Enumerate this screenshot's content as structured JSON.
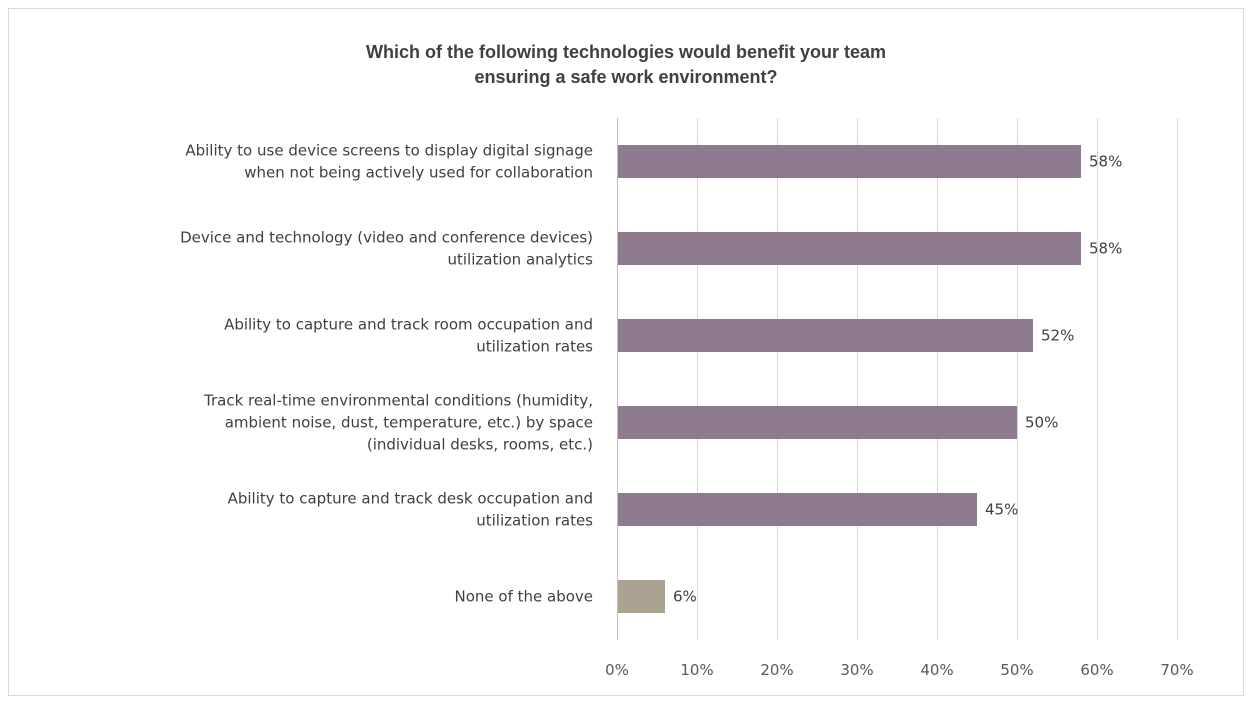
{
  "chart_data": {
    "type": "bar",
    "orientation": "horizontal",
    "title_lines": [
      "Which of the following technologies would benefit your team",
      "ensuring a safe work environment?"
    ],
    "categories": [
      [
        "Ability to use device screens to display digital signage",
        "when not being actively used for collaboration"
      ],
      [
        "Device and technology (video and conference devices)",
        "utilization analytics"
      ],
      [
        "Ability to capture and track room occupation and",
        "utilization rates"
      ],
      [
        "Track real-time environmental conditions (humidity,",
        "ambient noise, dust, temperature, etc.) by space",
        "(individual desks, rooms, etc.)"
      ],
      [
        "Ability to capture and track desk occupation and",
        "utilization rates"
      ],
      [
        "None of the above"
      ]
    ],
    "values": [
      58,
      58,
      52,
      50,
      45,
      6
    ],
    "data_labels": [
      "58%",
      "58%",
      "52%",
      "50%",
      "45%",
      "6%"
    ],
    "bar_colors": [
      "#8e7b8f",
      "#8e7b8f",
      "#8e7b8f",
      "#8e7b8f",
      "#8e7b8f",
      "#aba392"
    ],
    "xlim": [
      0,
      70
    ],
    "xticks": [
      0,
      10,
      20,
      30,
      40,
      50,
      60,
      70
    ],
    "xtick_labels": [
      "0%",
      "10%",
      "20%",
      "30%",
      "40%",
      "50%",
      "60%",
      "70%"
    ],
    "grid": true,
    "legend": "none"
  }
}
